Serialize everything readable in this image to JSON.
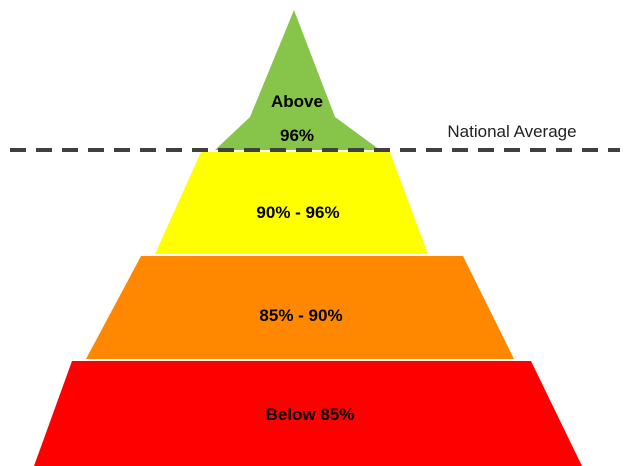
{
  "tiers": [
    {
      "line1": "Above",
      "line2": "96%",
      "color": "#86c44a"
    },
    {
      "label": "90% - 96%",
      "color": "#ffff00"
    },
    {
      "label": "85% - 90%",
      "color": "#ff8800"
    },
    {
      "label": "Below 85%",
      "color": "#ff0000"
    }
  ],
  "national_average": {
    "label": "National Average",
    "line_color": "#404040"
  }
}
